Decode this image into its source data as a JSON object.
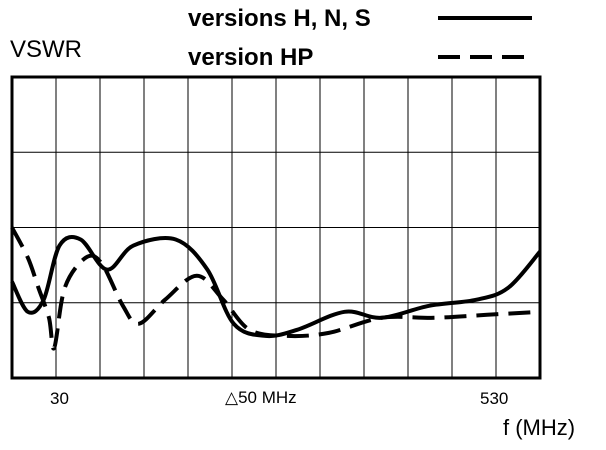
{
  "chart_data": {
    "type": "line",
    "ylabel": "VSWR",
    "xlabel": "f (MHz)",
    "xlim": [
      30,
      530
    ],
    "ylim": [
      0,
      5
    ],
    "grid": true,
    "x_ticks": [
      {
        "label": "30"
      },
      {
        "label": "△50 MHz"
      },
      {
        "label": "530"
      }
    ],
    "legend_position": "top-right",
    "series": [
      {
        "name": "versions H, N, S",
        "style": "solid",
        "color": "#000000",
        "points": [
          [
            30,
            1.6
          ],
          [
            45,
            1.1
          ],
          [
            60,
            1.3
          ],
          [
            75,
            2.2
          ],
          [
            95,
            2.3
          ],
          [
            120,
            1.8
          ],
          [
            145,
            2.2
          ],
          [
            185,
            2.3
          ],
          [
            215,
            1.8
          ],
          [
            240,
            0.9
          ],
          [
            270,
            0.7
          ],
          [
            300,
            0.8
          ],
          [
            345,
            1.1
          ],
          [
            380,
            1.0
          ],
          [
            425,
            1.2
          ],
          [
            470,
            1.3
          ],
          [
            500,
            1.5
          ],
          [
            530,
            2.1
          ]
        ]
      },
      {
        "name": "version HP",
        "style": "dashed",
        "color": "#000000",
        "points": [
          [
            30,
            2.5
          ],
          [
            45,
            2.0
          ],
          [
            55,
            1.5
          ],
          [
            65,
            1.0
          ],
          [
            70,
            0.5
          ],
          [
            80,
            1.5
          ],
          [
            100,
            2.0
          ],
          [
            115,
            1.9
          ],
          [
            135,
            1.2
          ],
          [
            150,
            0.9
          ],
          [
            175,
            1.3
          ],
          [
            205,
            1.7
          ],
          [
            230,
            1.3
          ],
          [
            255,
            0.8
          ],
          [
            290,
            0.7
          ],
          [
            330,
            0.75
          ],
          [
            380,
            1.0
          ],
          [
            430,
            1.0
          ],
          [
            480,
            1.05
          ],
          [
            530,
            1.1
          ]
        ]
      }
    ]
  }
}
